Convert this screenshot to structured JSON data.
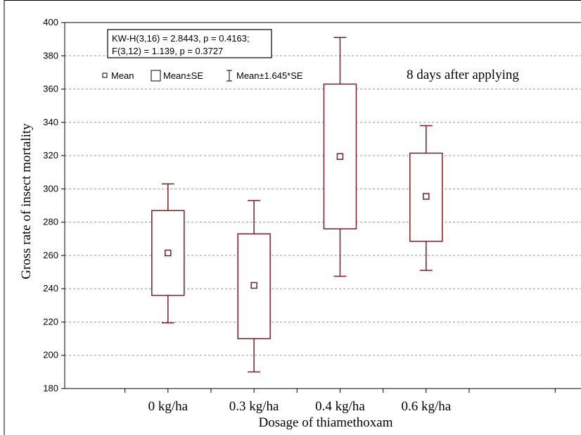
{
  "chart_data": {
    "type": "boxplot",
    "annotation": "8 days after applying",
    "stats_lines": [
      "KW-H(3,16) = 2.8443, p = 0.4163;",
      "F(3,12) = 1.139, p = 0.3727"
    ],
    "legend": [
      {
        "symbol": "mean-square",
        "label": "Mean"
      },
      {
        "symbol": "box",
        "label": "Mean±SE"
      },
      {
        "symbol": "whisker",
        "label": "Mean±1.645*SE"
      }
    ],
    "xlabel": "Dosage of thiamethoxam",
    "ylabel": "Gross rate of insect mortality",
    "ylim": [
      180,
      400
    ],
    "yticks": [
      180,
      200,
      220,
      240,
      260,
      280,
      300,
      320,
      340,
      360,
      380,
      400
    ],
    "categories": [
      "0 kg/ha",
      "0.3 kg/ha",
      "0.4 kg/ha",
      "0.6 kg/ha"
    ],
    "series": [
      {
        "mean": 261.5,
        "se_low": 236,
        "se_high": 287,
        "ci_low": 219.5,
        "ci_high": 303
      },
      {
        "mean": 242,
        "se_low": 210,
        "se_high": 273,
        "ci_low": 190,
        "ci_high": 293
      },
      {
        "mean": 319.5,
        "se_low": 276,
        "se_high": 363,
        "ci_low": 247.5,
        "ci_high": 391
      },
      {
        "mean": 295.5,
        "se_low": 268.5,
        "se_high": 321.5,
        "ci_low": 251,
        "ci_high": 338
      }
    ],
    "grid": true,
    "color": "#7a1f24"
  }
}
